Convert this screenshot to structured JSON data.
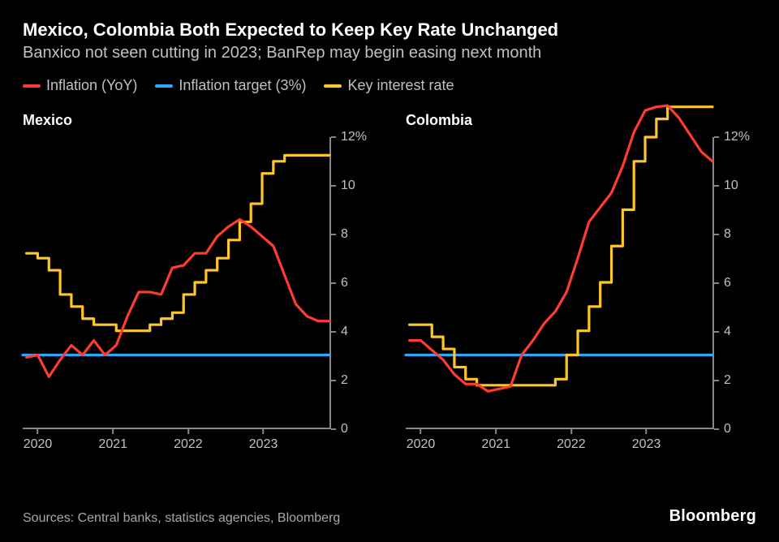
{
  "title": "Mexico, Colombia Both Expected to Keep Key Rate Unchanged",
  "subtitle": "Banxico not seen cutting in 2023; BanRep may begin easing next month",
  "legend": [
    {
      "label": "Inflation (YoY)",
      "color": "#ff3b30"
    },
    {
      "label": "Inflation target (3%)",
      "color": "#2aa8ff"
    },
    {
      "label": "Key interest rate",
      "color": "#ffc629"
    }
  ],
  "colors": {
    "background": "#000000",
    "axis": "#888888",
    "text_muted": "#c0c0c0",
    "text": "#ffffff"
  },
  "axes": {
    "y": {
      "min": 0,
      "max": 12,
      "ticks": [
        0,
        2,
        4,
        6,
        8,
        10,
        12
      ],
      "suffix_first": "%"
    },
    "x": {
      "min": 2019.8,
      "max": 2023.9,
      "ticks": [
        2020,
        2021,
        2022,
        2023
      ]
    }
  },
  "line_width": 3.2,
  "panels": [
    {
      "title": "Mexico",
      "series": {
        "inflation": {
          "color": "#ff3b30",
          "points": [
            [
              2019.85,
              2.9
            ],
            [
              2020.0,
              3.0
            ],
            [
              2020.15,
              2.1
            ],
            [
              2020.3,
              2.8
            ],
            [
              2020.45,
              3.4
            ],
            [
              2020.6,
              3.0
            ],
            [
              2020.75,
              3.6
            ],
            [
              2020.9,
              3.0
            ],
            [
              2021.05,
              3.4
            ],
            [
              2021.2,
              4.6
            ],
            [
              2021.35,
              5.6
            ],
            [
              2021.5,
              5.6
            ],
            [
              2021.65,
              5.5
            ],
            [
              2021.8,
              6.6
            ],
            [
              2021.95,
              6.7
            ],
            [
              2022.1,
              7.2
            ],
            [
              2022.25,
              7.2
            ],
            [
              2022.4,
              7.9
            ],
            [
              2022.55,
              8.3
            ],
            [
              2022.7,
              8.6
            ],
            [
              2022.85,
              8.3
            ],
            [
              2023.0,
              7.9
            ],
            [
              2023.15,
              7.5
            ],
            [
              2023.3,
              6.3
            ],
            [
              2023.45,
              5.1
            ],
            [
              2023.6,
              4.6
            ],
            [
              2023.75,
              4.4
            ],
            [
              2023.9,
              4.4
            ]
          ]
        },
        "target": {
          "color": "#2aa8ff",
          "points": [
            [
              2019.8,
              3.0
            ],
            [
              2023.9,
              3.0
            ]
          ]
        },
        "key_rate": {
          "color": "#ffc629",
          "points": [
            [
              2019.85,
              7.2
            ],
            [
              2020.0,
              7.0
            ],
            [
              2020.15,
              6.5
            ],
            [
              2020.3,
              5.5
            ],
            [
              2020.45,
              5.0
            ],
            [
              2020.6,
              4.5
            ],
            [
              2020.75,
              4.25
            ],
            [
              2020.9,
              4.25
            ],
            [
              2021.05,
              4.0
            ],
            [
              2021.2,
              4.0
            ],
            [
              2021.35,
              4.0
            ],
            [
              2021.5,
              4.25
            ],
            [
              2021.65,
              4.5
            ],
            [
              2021.8,
              4.75
            ],
            [
              2021.95,
              5.5
            ],
            [
              2022.1,
              6.0
            ],
            [
              2022.25,
              6.5
            ],
            [
              2022.4,
              7.0
            ],
            [
              2022.55,
              7.75
            ],
            [
              2022.7,
              8.5
            ],
            [
              2022.85,
              9.25
            ],
            [
              2023.0,
              10.5
            ],
            [
              2023.15,
              11.0
            ],
            [
              2023.3,
              11.25
            ],
            [
              2023.45,
              11.25
            ],
            [
              2023.6,
              11.25
            ],
            [
              2023.75,
              11.25
            ],
            [
              2023.9,
              11.25
            ]
          ]
        }
      }
    },
    {
      "title": "Colombia",
      "series": {
        "inflation": {
          "color": "#ff3b30",
          "points": [
            [
              2019.85,
              3.6
            ],
            [
              2020.0,
              3.6
            ],
            [
              2020.15,
              3.2
            ],
            [
              2020.3,
              2.8
            ],
            [
              2020.45,
              2.2
            ],
            [
              2020.6,
              1.8
            ],
            [
              2020.75,
              1.8
            ],
            [
              2020.9,
              1.5
            ],
            [
              2021.05,
              1.6
            ],
            [
              2021.2,
              1.7
            ],
            [
              2021.35,
              3.0
            ],
            [
              2021.5,
              3.6
            ],
            [
              2021.65,
              4.3
            ],
            [
              2021.8,
              4.8
            ],
            [
              2021.95,
              5.6
            ],
            [
              2022.1,
              7.0
            ],
            [
              2022.25,
              8.5
            ],
            [
              2022.4,
              9.1
            ],
            [
              2022.55,
              9.7
            ],
            [
              2022.7,
              10.8
            ],
            [
              2022.85,
              12.2
            ],
            [
              2023.0,
              13.1
            ],
            [
              2023.15,
              13.25
            ],
            [
              2023.3,
              13.3
            ],
            [
              2023.45,
              12.8
            ],
            [
              2023.6,
              12.1
            ],
            [
              2023.75,
              11.4
            ],
            [
              2023.9,
              11.0
            ]
          ]
        },
        "target": {
          "color": "#2aa8ff",
          "points": [
            [
              2019.8,
              3.0
            ],
            [
              2023.9,
              3.0
            ]
          ]
        },
        "key_rate": {
          "color": "#ffc629",
          "points": [
            [
              2019.85,
              4.25
            ],
            [
              2020.0,
              4.25
            ],
            [
              2020.15,
              3.75
            ],
            [
              2020.3,
              3.25
            ],
            [
              2020.45,
              2.5
            ],
            [
              2020.6,
              2.0
            ],
            [
              2020.75,
              1.75
            ],
            [
              2020.9,
              1.75
            ],
            [
              2021.05,
              1.75
            ],
            [
              2021.2,
              1.75
            ],
            [
              2021.35,
              1.75
            ],
            [
              2021.5,
              1.75
            ],
            [
              2021.65,
              1.75
            ],
            [
              2021.8,
              2.0
            ],
            [
              2021.95,
              3.0
            ],
            [
              2022.1,
              4.0
            ],
            [
              2022.25,
              5.0
            ],
            [
              2022.4,
              6.0
            ],
            [
              2022.55,
              7.5
            ],
            [
              2022.7,
              9.0
            ],
            [
              2022.85,
              11.0
            ],
            [
              2023.0,
              12.0
            ],
            [
              2023.15,
              12.75
            ],
            [
              2023.3,
              13.25
            ],
            [
              2023.45,
              13.25
            ],
            [
              2023.6,
              13.25
            ],
            [
              2023.75,
              13.25
            ],
            [
              2023.9,
              13.25
            ]
          ]
        }
      }
    }
  ],
  "source": "Sources: Central banks, statistics agencies, Bloomberg",
  "brand": "Bloomberg"
}
